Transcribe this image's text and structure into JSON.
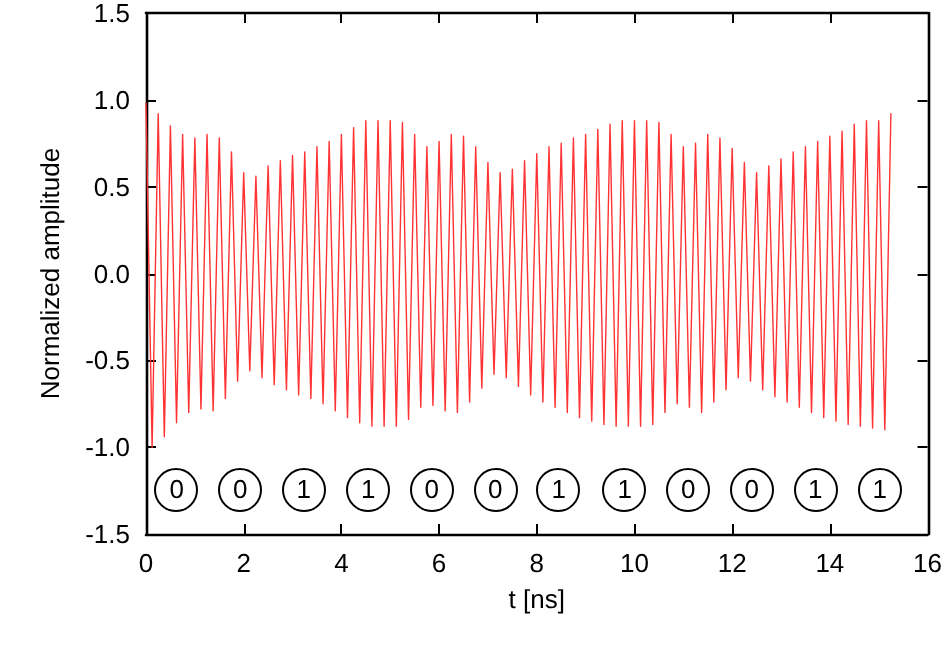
{
  "chart_data": {
    "type": "line",
    "xlabel": "t [ns]",
    "ylabel": "Normalized amplitude",
    "xlim": [
      0,
      16
    ],
    "xticks": [
      0,
      2,
      4,
      6,
      8,
      10,
      12,
      14,
      16
    ],
    "ylim": [
      -1.5,
      1.5
    ],
    "yticks": [
      {
        "value": -1.5,
        "label": "-1.5"
      },
      {
        "value": -1,
        "label": "-1.0"
      },
      {
        "value": -0.5,
        "label": "-0.5"
      },
      {
        "value": 0,
        "label": "0.0"
      },
      {
        "value": 0.5,
        "label": "0.5"
      },
      {
        "value": 1,
        "label": "1.0"
      },
      {
        "value": 1.5,
        "label": "1.5"
      }
    ],
    "grid": false,
    "marker": "none",
    "line_style": "solid",
    "series": [
      {
        "color": "#ff3333",
        "x": [
          0,
          0.125,
          0.25,
          0.375,
          0.5,
          0.625,
          0.75,
          0.875,
          1,
          1.125,
          1.25,
          1.375,
          1.5,
          1.625,
          1.75,
          1.875,
          2,
          2.125,
          2.25,
          2.375,
          2.5,
          2.625,
          2.75,
          2.875,
          3,
          3.125,
          3.25,
          3.375,
          3.5,
          3.625,
          3.75,
          3.875,
          4,
          4.125,
          4.25,
          4.375,
          4.5,
          4.625,
          4.75,
          4.875,
          5,
          5.125,
          5.25,
          5.375,
          5.5,
          5.625,
          5.75,
          5.875,
          6,
          6.125,
          6.25,
          6.375,
          6.5,
          6.625,
          6.75,
          6.875,
          7,
          7.125,
          7.25,
          7.375,
          7.5,
          7.625,
          7.75,
          7.875,
          8,
          8.125,
          8.25,
          8.375,
          8.5,
          8.625,
          8.75,
          8.875,
          9,
          9.125,
          9.25,
          9.375,
          9.5,
          9.625,
          9.75,
          9.875,
          10,
          10.125,
          10.25,
          10.375,
          10.5,
          10.625,
          10.75,
          10.875,
          11,
          11.125,
          11.25,
          11.375,
          11.5,
          11.625,
          11.75,
          11.875,
          12,
          12.125,
          12.25,
          12.375,
          12.5,
          12.625,
          12.75,
          12.875,
          13,
          13.125,
          13.25,
          13.375,
          13.5,
          13.625,
          13.75,
          13.875,
          14,
          14.125,
          14.25,
          14.375,
          14.5,
          14.625,
          14.75,
          14.875,
          15,
          15.125,
          15.25
        ],
        "values": [
          0.98,
          -1.0,
          0.92,
          -0.94,
          0.85,
          -0.86,
          0.8,
          -0.8,
          0.78,
          -0.78,
          0.8,
          -0.79,
          0.78,
          -0.72,
          0.7,
          -0.62,
          0.58,
          -0.56,
          0.56,
          -0.6,
          0.62,
          -0.64,
          0.65,
          -0.67,
          0.68,
          -0.7,
          0.7,
          -0.72,
          0.73,
          -0.75,
          0.76,
          -0.79,
          0.8,
          -0.83,
          0.84,
          -0.86,
          0.88,
          -0.88,
          0.88,
          -0.88,
          0.88,
          -0.88,
          0.87,
          -0.84,
          0.8,
          -0.77,
          0.73,
          -0.76,
          0.76,
          -0.79,
          0.8,
          -0.8,
          0.79,
          -0.74,
          0.73,
          -0.66,
          0.64,
          -0.58,
          0.58,
          -0.6,
          0.6,
          -0.65,
          0.65,
          -0.7,
          0.69,
          -0.74,
          0.73,
          -0.77,
          0.75,
          -0.8,
          0.78,
          -0.83,
          0.8,
          -0.85,
          0.83,
          -0.87,
          0.86,
          -0.88,
          0.88,
          -0.88,
          0.88,
          -0.88,
          0.88,
          -0.87,
          0.87,
          -0.8,
          0.8,
          -0.75,
          0.73,
          -0.77,
          0.75,
          -0.8,
          0.8,
          -0.74,
          0.78,
          -0.67,
          0.72,
          -0.6,
          0.64,
          -0.62,
          0.58,
          -0.67,
          0.62,
          -0.71,
          0.66,
          -0.74,
          0.7,
          -0.77,
          0.73,
          -0.8,
          0.76,
          -0.83,
          0.79,
          -0.85,
          0.82,
          -0.87,
          0.86,
          -0.88,
          0.88,
          -0.89,
          0.88,
          -0.9,
          0.92
        ]
      }
    ],
    "annotations": [
      {
        "text": "0",
        "x": 0.63,
        "y": -1.25
      },
      {
        "text": "0",
        "x": 1.93,
        "y": -1.25
      },
      {
        "text": "1",
        "x": 3.23,
        "y": -1.25
      },
      {
        "text": "1",
        "x": 4.55,
        "y": -1.25
      },
      {
        "text": "0",
        "x": 5.85,
        "y": -1.25
      },
      {
        "text": "0",
        "x": 7.15,
        "y": -1.25
      },
      {
        "text": "1",
        "x": 8.45,
        "y": -1.25
      },
      {
        "text": "1",
        "x": 9.8,
        "y": -1.25
      },
      {
        "text": "0",
        "x": 11.1,
        "y": -1.25
      },
      {
        "text": "0",
        "x": 12.4,
        "y": -1.25
      },
      {
        "text": "1",
        "x": 13.7,
        "y": -1.25
      },
      {
        "text": "1",
        "x": 15.02,
        "y": -1.25
      }
    ]
  }
}
